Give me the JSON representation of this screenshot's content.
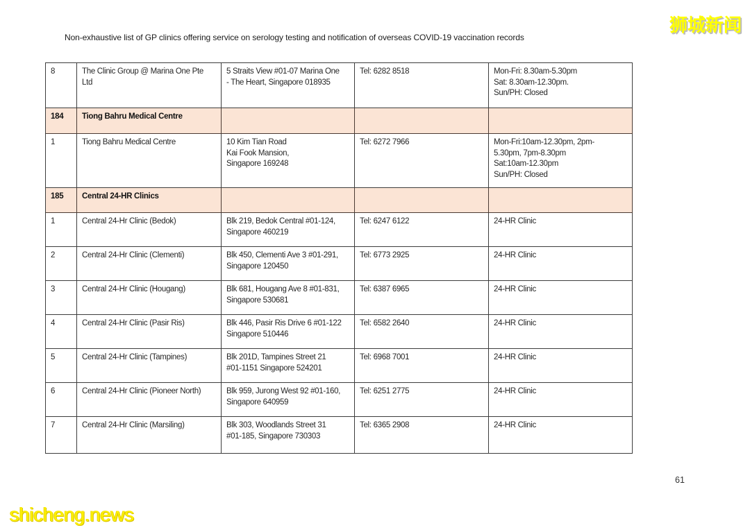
{
  "page": {
    "title": "Non-exhaustive list of GP clinics offering service on serology testing and notification of overseas COVID-19 vaccination records",
    "page_number": "61"
  },
  "watermarks": {
    "top_right": "狮城新闻",
    "bottom_left": "shicheng.news"
  },
  "colors": {
    "section_header_bg": "#fbe4d5",
    "table_border": "#3c3c3c",
    "watermark_yellow": "#ffff00"
  },
  "table": {
    "columns": [
      "num",
      "name",
      "address",
      "tel",
      "hours"
    ],
    "rows": [
      {
        "type": "entry",
        "num": "8",
        "name": "The Clinic Group @ Marina One Pte\nLtd",
        "address": "5 Straits View #01-07 Marina One\n- The Heart, Singapore 018935",
        "tel": "Tel: 6282 8518",
        "hours": "Mon-Fri: 8.30am-5.30pm\nSat: 8.30am-12.30pm.\nSun/PH: Closed"
      },
      {
        "type": "section",
        "num": "184",
        "name": "Tiong Bahru Medical Centre",
        "address": "",
        "tel": "",
        "hours": ""
      },
      {
        "type": "entry",
        "num": "1",
        "name": "Tiong Bahru Medical Centre",
        "address": "10 Kim Tian Road\nKai Fook Mansion,\nSingapore 169248",
        "tel": "Tel: 6272 7966",
        "hours": "Mon-Fri:10am-12.30pm, 2pm-\n5.30pm, 7pm-8.30pm\nSat:10am-12.30pm\nSun/PH: Closed"
      },
      {
        "type": "section",
        "num": "185",
        "name": "Central 24-HR Clinics",
        "address": "",
        "tel": "",
        "hours": ""
      },
      {
        "type": "entry",
        "num": "1",
        "name": "Central 24-Hr Clinic (Bedok)",
        "address": "Blk 219, Bedok Central #01-124,\nSingapore 460219",
        "tel": "Tel: 6247 6122",
        "hours": "24-HR Clinic"
      },
      {
        "type": "entry",
        "num": "2",
        "name": "Central 24-Hr Clinic (Clementi)",
        "address": "Blk 450, Clementi Ave 3 #01-291,\nSingapore 120450",
        "tel": "Tel: 6773 2925",
        "hours": "24-HR Clinic"
      },
      {
        "type": "entry",
        "num": "3",
        "name": "Central 24-Hr Clinic (Hougang)",
        "address": "Blk 681, Hougang Ave 8 #01-831,\nSingapore 530681",
        "tel": "Tel: 6387 6965",
        "hours": "24-HR Clinic"
      },
      {
        "type": "entry",
        "num": "4",
        "name": "Central 24-Hr Clinic (Pasir Ris)",
        "address": "Blk 446, Pasir Ris Drive 6 #01-122\nSingapore 510446",
        "tel": "Tel: 6582 2640",
        "hours": "24-HR Clinic"
      },
      {
        "type": "entry",
        "num": "5",
        "name": "Central 24-Hr Clinic (Tampines)",
        "address": "Blk 201D, Tampines Street 21\n#01-1151 Singapore 524201",
        "tel": "Tel: 6968 7001",
        "hours": "24-HR Clinic"
      },
      {
        "type": "entry",
        "num": "6",
        "name": "Central 24-Hr Clinic (Pioneer North)",
        "address": "Blk 959, Jurong West 92 #01-160,\nSingapore 640959",
        "tel": "Tel: 6251 2775",
        "hours": "24-HR Clinic"
      },
      {
        "type": "entry",
        "num": "7",
        "name": "Central 24-Hr Clinic (Marsiling)",
        "address": "Blk 303, Woodlands Street 31\n#01-185, Singapore 730303",
        "tel": "Tel: 6365 2908",
        "hours": "24-HR Clinic"
      }
    ]
  }
}
